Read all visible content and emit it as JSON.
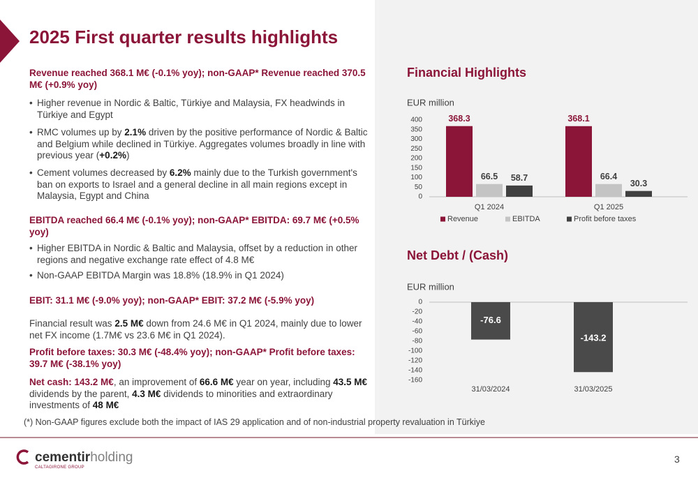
{
  "title": "2025 First quarter results highlights",
  "blocks": [
    {
      "kind": "heading",
      "parts": [
        {
          "text": "Revenue reached 368.1 M€ (-0.1% yoy); non-GAAP* Revenue reached  370.5 M€ (+0.9% yoy)"
        }
      ]
    },
    {
      "kind": "bullet",
      "parts": [
        {
          "text": "Higher revenue in Nordic & Baltic, Türkiye and Malaysia, FX headwinds in Türkiye and Egypt"
        }
      ]
    },
    {
      "kind": "bullet",
      "parts": [
        {
          "text": "RMC volumes up by "
        },
        {
          "text": "2.1%",
          "style": "bold"
        },
        {
          "text": "  driven by the positive performance of Nordic & Baltic and Belgium while declined in Türkiye. Aggregates volumes broadly in line with previous year ("
        },
        {
          "text": "+0.2%",
          "style": "bold"
        },
        {
          "text": ")"
        }
      ]
    },
    {
      "kind": "bullet",
      "parts": [
        {
          "text": "Cement volumes decreased by "
        },
        {
          "text": "6.2%",
          "style": "bold"
        },
        {
          "text": " mainly due to the Turkish government's ban on exports to Israel and a general decline in all main regions except in Malaysia, Egypt and China"
        }
      ]
    },
    {
      "kind": "heading",
      "parts": [
        {
          "text": "EBITDA reached 66.4 M€ (-0.1% yoy); non-GAAP* EBITDA: 69.7 M€ (+0.5% yoy)"
        }
      ]
    },
    {
      "kind": "bullet",
      "parts": [
        {
          "text": "Higher EBITDA in Nordic & Baltic and Malaysia, offset by a reduction in other regions and negative exchange rate effect of 4.8 M€"
        }
      ]
    },
    {
      "kind": "bullet",
      "parts": [
        {
          "text": "Non-GAAP EBITDA Margin was 18.8% (18.9% in Q1 2024)"
        }
      ]
    },
    {
      "kind": "heading",
      "parts": [
        {
          "text": "EBIT: 31.1 M€ (-9.0% yoy); non-GAAP* EBIT: 37.2 M€ (-5.9% yoy)"
        }
      ]
    },
    {
      "kind": "text",
      "parts": [
        {
          "text": "Financial result was "
        },
        {
          "text": "2.5 M€",
          "style": "bold"
        },
        {
          "text": "  down from 24.6 M€ in Q1 2024, mainly due to lower net FX income (1.7M€ vs 23.6 M€ in Q1 2024)."
        }
      ]
    },
    {
      "kind": "heading",
      "parts": [
        {
          "text": "Profit before taxes: 30.3 M€ (-48.4% yoy); non-GAAP* Profit before taxes: 39.7 M€ (-38.1% yoy)"
        }
      ]
    },
    {
      "kind": "text",
      "parts": [
        {
          "text": "Net cash: 143.2 M€",
          "style": "accent"
        },
        {
          "text": ", an improvement of "
        },
        {
          "text": "66.6 M€",
          "style": "bold"
        },
        {
          "text": "  year on year, including "
        },
        {
          "text": "43.5 M€",
          "style": "bold"
        },
        {
          "text": " dividends by the parent, "
        },
        {
          "text": "4.3 M€",
          "style": "bold"
        },
        {
          "text": " dividends to minorities and extraordinary investments of "
        },
        {
          "text": "48 M€",
          "style": "bold"
        }
      ]
    }
  ],
  "chart_data": [
    {
      "type": "bar",
      "title": "Financial Highlights",
      "y_label": "EUR million",
      "categories": [
        "Q1 2024",
        "Q1 2025"
      ],
      "series": [
        {
          "name": "Revenue",
          "color": "#8b1538",
          "values": [
            368.3,
            368.1
          ]
        },
        {
          "name": "EBITDA",
          "color": "#c4c4c4",
          "values": [
            66.5,
            66.4
          ]
        },
        {
          "name": "Profit before taxes",
          "color": "#404040",
          "values": [
            58.7,
            30.3
          ]
        }
      ],
      "ylim": [
        0,
        400
      ],
      "yticks": [
        0,
        50,
        100,
        150,
        200,
        250,
        300,
        350,
        400
      ],
      "grid": false,
      "legend": "bottom"
    },
    {
      "type": "bar",
      "title": "Net Debt / (Cash)",
      "y_label": "EUR million",
      "categories": [
        "31/03/2024",
        "31/03/2025"
      ],
      "values": [
        -76.6,
        -143.2
      ],
      "color": "#4a4a4a",
      "ylim": [
        -160,
        0
      ],
      "yticks": [
        0,
        -20,
        -40,
        -60,
        -80,
        -100,
        -120,
        -140,
        -160
      ],
      "grid": false
    }
  ],
  "footnote": "(*)   Non-GAAP figures exclude both the impact of IAS 29 application and of non-industrial property revaluation in Türkiye",
  "logo": {
    "name_bold": "cementir",
    "name_light": "holding",
    "group": "CALTAGIRONE GROUP"
  },
  "page_number": "3"
}
